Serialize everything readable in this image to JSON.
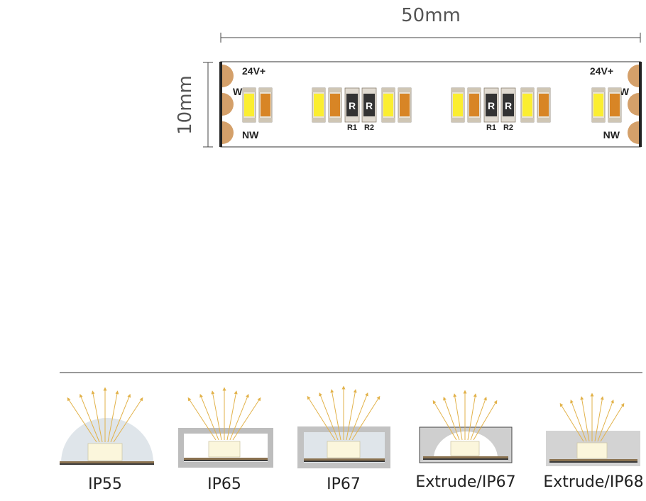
{
  "strip": {
    "length_label": "50mm",
    "width_label": "10mm",
    "pad_labels": {
      "left_top": "24V+",
      "left_mid": "W",
      "left_bottom": "NW",
      "right_top": "24V+",
      "right_mid": "W",
      "right_bottom": "NW"
    },
    "resistor_glyph": "R",
    "resistor_labels": [
      "R1",
      "R2"
    ],
    "colors": {
      "pad": "#d4a06a",
      "led_white": "#fbee30",
      "led_neutral": "#d88525",
      "resistor": "#333333",
      "outline": "#555555"
    }
  },
  "ip_variants": [
    {
      "label": "IP55"
    },
    {
      "label": "IP65"
    },
    {
      "label": "IP67"
    },
    {
      "label": "Extrude/IP67"
    },
    {
      "label": "Extrude/IP68"
    }
  ]
}
